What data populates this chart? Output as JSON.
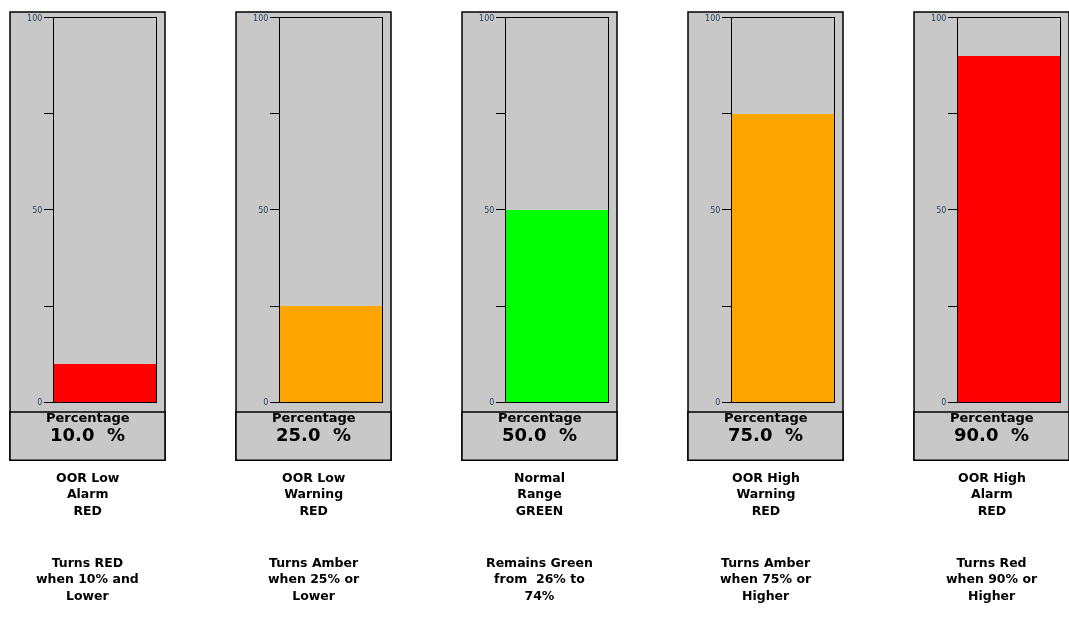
{
  "chart_data": [
    {
      "type": "bar",
      "categories": [
        null
      ],
      "values": [
        10
      ],
      "colors": [
        "#ff0000"
      ],
      "ylim": [
        0,
        100
      ],
      "yticks": [
        {
          "value": 0,
          "label": "0"
        },
        {
          "value": 25,
          "label": null
        },
        {
          "value": 50,
          "label": "50"
        },
        {
          "value": 75,
          "label": null
        },
        {
          "value": 100,
          "label": "100"
        }
      ],
      "xlabel": "Percentage",
      "value_labels": [
        "10.0  %"
      ],
      "grid": false,
      "annotations": [
        "OOR Low\nAlarm\nRED",
        "Turns RED\nwhen 10% and\nLower"
      ]
    },
    {
      "type": "bar",
      "categories": [
        null
      ],
      "values": [
        25
      ],
      "colors": [
        "#ffa500"
      ],
      "ylim": [
        0,
        100
      ],
      "yticks": [
        {
          "value": 0,
          "label": "0"
        },
        {
          "value": 25,
          "label": null
        },
        {
          "value": 50,
          "label": "50"
        },
        {
          "value": 75,
          "label": null
        },
        {
          "value": 100,
          "label": "100"
        }
      ],
      "xlabel": "Percentage",
      "value_labels": [
        "25.0  %"
      ],
      "grid": false,
      "annotations": [
        "OOR Low\nWarning\nRED",
        "Turns Amber\nwhen 25% or\nLower"
      ]
    },
    {
      "type": "bar",
      "categories": [
        null
      ],
      "values": [
        50
      ],
      "colors": [
        "#00ff00"
      ],
      "ylim": [
        0,
        100
      ],
      "yticks": [
        {
          "value": 0,
          "label": "0"
        },
        {
          "value": 25,
          "label": null
        },
        {
          "value": 50,
          "label": "50"
        },
        {
          "value": 75,
          "label": null
        },
        {
          "value": 100,
          "label": "100"
        }
      ],
      "xlabel": "Percentage",
      "value_labels": [
        "50.0  %"
      ],
      "grid": false,
      "annotations": [
        "Normal\nRange\nGREEN",
        "Remains Green\nfrom  26% to\n74%"
      ]
    },
    {
      "type": "bar",
      "categories": [
        null
      ],
      "values": [
        75
      ],
      "colors": [
        "#ffa500"
      ],
      "ylim": [
        0,
        100
      ],
      "yticks": [
        {
          "value": 0,
          "label": "0"
        },
        {
          "value": 25,
          "label": null
        },
        {
          "value": 50,
          "label": "50"
        },
        {
          "value": 75,
          "label": null
        },
        {
          "value": 100,
          "label": "100"
        }
      ],
      "xlabel": "Percentage",
      "value_labels": [
        "75.0  %"
      ],
      "grid": false,
      "annotations": [
        "OOR High\nWarning\nRED",
        "Turns Amber\nwhen 75% or\nHigher"
      ]
    },
    {
      "type": "bar",
      "categories": [
        null
      ],
      "values": [
        90
      ],
      "colors": [
        "#ff0000"
      ],
      "ylim": [
        0,
        100
      ],
      "yticks": [
        {
          "value": 0,
          "label": "0"
        },
        {
          "value": 25,
          "label": null
        },
        {
          "value": 50,
          "label": "50"
        },
        {
          "value": 75,
          "label": null
        },
        {
          "value": 100,
          "label": "100"
        }
      ],
      "xlabel": "Percentage",
      "value_labels": [
        "90.0  %"
      ],
      "grid": false,
      "annotations": [
        "OOR High\nAlarm\nRED",
        "Turns Red\nwhen 90% or\nHigher"
      ]
    }
  ]
}
